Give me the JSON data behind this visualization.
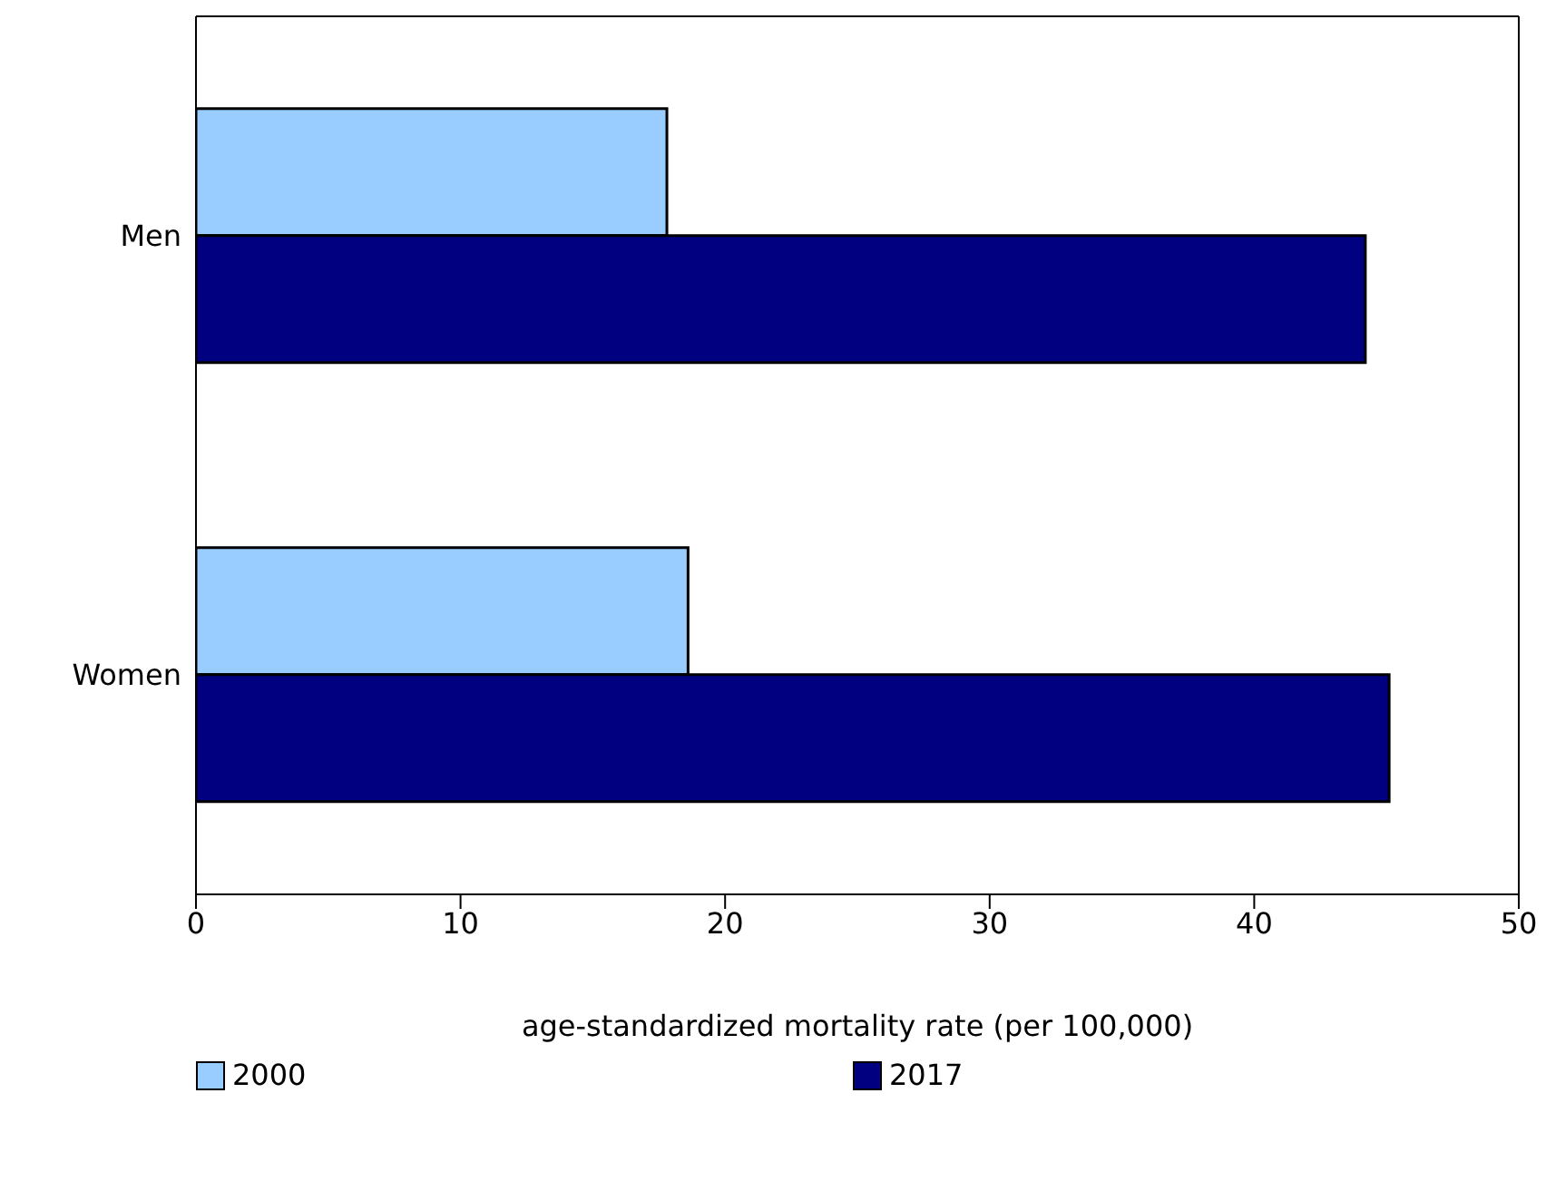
{
  "chart_data": {
    "type": "bar",
    "orientation": "horizontal",
    "categories": [
      "Men",
      "Women"
    ],
    "series": [
      {
        "name": "2000",
        "color": "#99ccff",
        "values": [
          17.8,
          18.6
        ]
      },
      {
        "name": "2017",
        "color": "#000080",
        "values": [
          44.2,
          45.1
        ]
      }
    ],
    "xlabel": "age-standardized mortality rate (per 100,000)",
    "xlim": [
      0,
      50
    ],
    "xticks": [
      0,
      10,
      20,
      30,
      40,
      50
    ],
    "legend": "bottom"
  }
}
